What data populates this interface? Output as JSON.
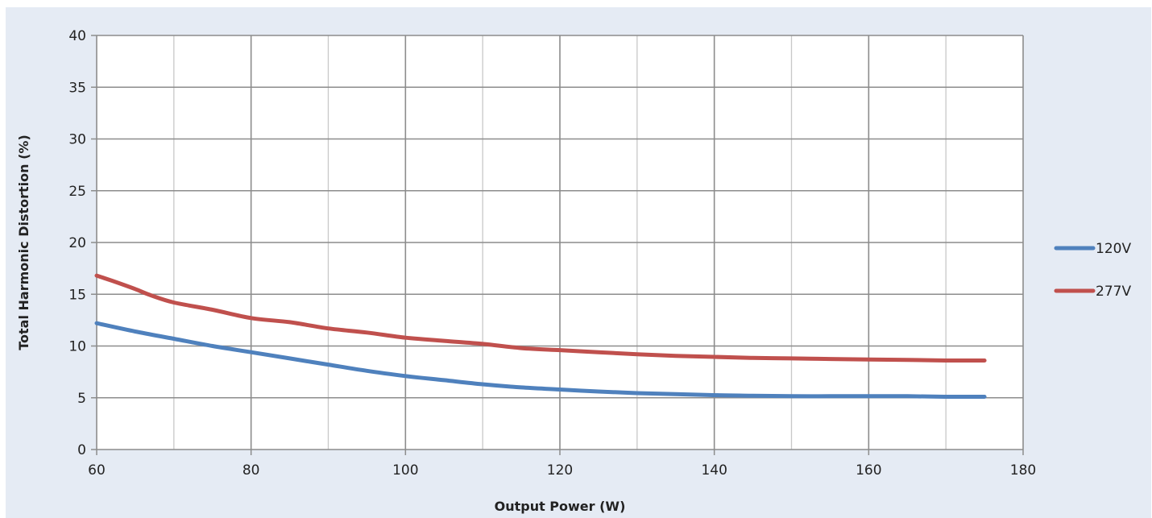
{
  "chart_data": {
    "type": "line",
    "title": "",
    "xlabel": "Output Power (W)",
    "ylabel": "Total Harmonic Distortion (%)",
    "xlim": [
      60,
      180
    ],
    "ylim": [
      0,
      40
    ],
    "xticks": [
      60,
      80,
      100,
      120,
      140,
      160,
      180
    ],
    "yticks": [
      0,
      5,
      10,
      15,
      20,
      25,
      30,
      35,
      40
    ],
    "grid": true,
    "legend_position": "right",
    "series": [
      {
        "name": "120V",
        "color": "#4f81bd",
        "x": [
          60,
          65,
          70,
          75,
          80,
          85,
          90,
          95,
          100,
          105,
          110,
          115,
          120,
          125,
          130,
          135,
          140,
          145,
          150,
          155,
          160,
          165,
          170,
          175
        ],
        "y": [
          12.2,
          11.4,
          10.7,
          10.0,
          9.4,
          8.8,
          8.2,
          7.6,
          7.1,
          6.7,
          6.3,
          6.0,
          5.8,
          5.6,
          5.45,
          5.35,
          5.25,
          5.2,
          5.15,
          5.15,
          5.15,
          5.15,
          5.1,
          5.1
        ]
      },
      {
        "name": "277V",
        "color": "#c0504d",
        "x": [
          60,
          62,
          65,
          67,
          70,
          75,
          80,
          85,
          90,
          95,
          100,
          105,
          110,
          115,
          120,
          125,
          130,
          135,
          140,
          145,
          150,
          155,
          160,
          165,
          170,
          175
        ],
        "y": [
          16.8,
          16.3,
          15.5,
          14.9,
          14.2,
          13.5,
          12.7,
          12.3,
          11.7,
          11.3,
          10.8,
          10.5,
          10.2,
          9.8,
          9.6,
          9.4,
          9.2,
          9.05,
          8.95,
          8.85,
          8.8,
          8.75,
          8.7,
          8.65,
          8.6,
          8.6
        ]
      }
    ]
  }
}
